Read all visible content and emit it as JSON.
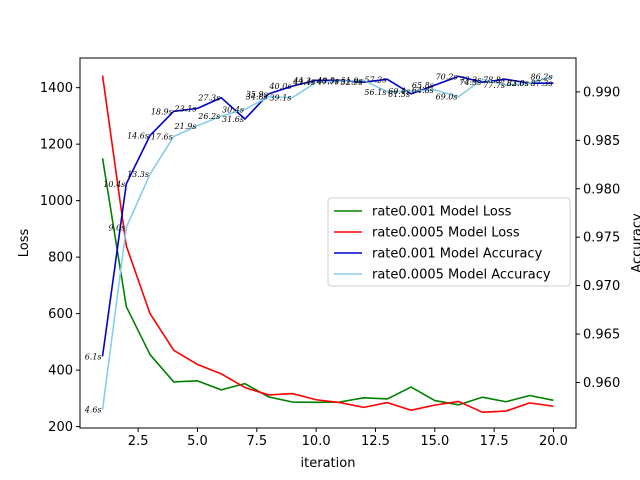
{
  "chart_data": {
    "type": "line",
    "xlabel": "iteration",
    "ylabel_left": "Loss",
    "ylabel_right": "Accuracy",
    "xlim": [
      0.05,
      20.95
    ],
    "ylim_left": [
      195,
      1505
    ],
    "ylim_right": [
      0.9553,
      0.9935
    ],
    "x_ticks": [
      2.5,
      5.0,
      7.5,
      10.0,
      12.5,
      15.0,
      17.5,
      20.0
    ],
    "x_tick_labels": [
      "2.5",
      "5.0",
      "7.5",
      "10.0",
      "12.5",
      "15.0",
      "17.5",
      "20.0"
    ],
    "y_left_ticks": [
      200,
      400,
      600,
      800,
      1000,
      1200,
      1400
    ],
    "y_left_tick_labels": [
      "200",
      "400",
      "600",
      "800",
      "1000",
      "1200",
      "1400"
    ],
    "y_right_ticks": [
      0.96,
      0.965,
      0.97,
      0.975,
      0.98,
      0.985,
      0.99
    ],
    "y_right_tick_labels": [
      "0.960",
      "0.965",
      "0.970",
      "0.975",
      "0.980",
      "0.985",
      "0.990"
    ],
    "legend_placement": "center-right",
    "x": [
      1,
      2,
      3,
      4,
      5,
      6,
      7,
      8,
      9,
      10,
      11,
      12,
      13,
      14,
      15,
      16,
      17,
      18,
      19,
      20
    ],
    "series": [
      {
        "name": "rate0.001 Model Loss",
        "axis": "left",
        "color": "#008000",
        "values": [
          1150,
          625,
          455,
          358,
          362,
          330,
          352,
          305,
          287,
          286,
          287,
          302,
          298,
          340,
          292,
          277,
          304,
          288,
          310,
          293
        ]
      },
      {
        "name": "rate0.0005 Model Loss",
        "axis": "left",
        "color": "#ff0000",
        "values": [
          1443,
          840,
          600,
          470,
          420,
          387,
          338,
          312,
          317,
          295,
          285,
          268,
          285,
          258,
          276,
          289,
          251,
          255,
          284,
          272
        ]
      },
      {
        "name": "rate0.001 Model Accuracy",
        "axis": "right",
        "color": "#0000cd",
        "values": [
          0.9627,
          0.9805,
          0.9855,
          0.988,
          0.9883,
          0.9894,
          0.9872,
          0.9898,
          0.9906,
          0.9912,
          0.9912,
          0.991,
          0.9913,
          0.9898,
          0.9907,
          0.9916,
          0.991,
          0.9913,
          0.9909,
          0.9909
        ]
      },
      {
        "name": "rate0.0005 Model Accuracy",
        "axis": "right",
        "color": "#87ceeb",
        "values": [
          0.9572,
          0.976,
          0.9815,
          0.9854,
          0.9865,
          0.9875,
          0.9882,
          0.9895,
          0.9894,
          0.991,
          0.9911,
          0.9912,
          0.99,
          0.9901,
          0.9902,
          0.9895,
          0.9913,
          0.9907,
          0.9909,
          0.9916
        ]
      }
    ],
    "annotations": [
      {
        "text": "6.1s",
        "x": 1,
        "y": 0.9627,
        "series": "rate0.001 Model Accuracy"
      },
      {
        "text": "10.4s",
        "x": 2,
        "y": 0.9805,
        "series": "rate0.001 Model Accuracy"
      },
      {
        "text": "14.6s",
        "x": 3,
        "y": 0.9855,
        "series": "rate0.001 Model Accuracy"
      },
      {
        "text": "18.9s",
        "x": 4,
        "y": 0.988,
        "series": "rate0.001 Model Accuracy"
      },
      {
        "text": "23.1s",
        "x": 5,
        "y": 0.9883,
        "series": "rate0.001 Model Accuracy"
      },
      {
        "text": "27.3s",
        "x": 6,
        "y": 0.9894,
        "series": "rate0.001 Model Accuracy"
      },
      {
        "text": "31.6s",
        "x": 7,
        "y": 0.9872,
        "series": "rate0.001 Model Accuracy"
      },
      {
        "text": "35.9s",
        "x": 8,
        "y": 0.9898,
        "series": "rate0.001 Model Accuracy"
      },
      {
        "text": "40.0s",
        "x": 9,
        "y": 0.9906,
        "series": "rate0.001 Model Accuracy"
      },
      {
        "text": "44.3s",
        "x": 10,
        "y": 0.9912,
        "series": "rate0.001 Model Accuracy"
      },
      {
        "text": "48.5s",
        "x": 11,
        "y": 0.9912,
        "series": "rate0.001 Model Accuracy"
      },
      {
        "text": "52.9s",
        "x": 12,
        "y": 0.991,
        "series": "rate0.001 Model Accuracy"
      },
      {
        "text": "57.2s",
        "x": 13,
        "y": 0.9913,
        "series": "rate0.001 Model Accuracy"
      },
      {
        "text": "61.5s",
        "x": 14,
        "y": 0.9898,
        "series": "rate0.001 Model Accuracy"
      },
      {
        "text": "65.8s",
        "x": 15,
        "y": 0.9907,
        "series": "rate0.001 Model Accuracy"
      },
      {
        "text": "70.2s",
        "x": 16,
        "y": 0.9916,
        "series": "rate0.001 Model Accuracy"
      },
      {
        "text": "74.5s",
        "x": 17,
        "y": 0.991,
        "series": "rate0.001 Model Accuracy"
      },
      {
        "text": "78.8s",
        "x": 18,
        "y": 0.9913,
        "series": "rate0.001 Model Accuracy"
      },
      {
        "text": "83.0s",
        "x": 19,
        "y": 0.9909,
        "series": "rate0.001 Model Accuracy"
      },
      {
        "text": "87.3s",
        "x": 20,
        "y": 0.9909,
        "series": "rate0.001 Model Accuracy"
      },
      {
        "text": "4.6s",
        "x": 1,
        "y": 0.9572,
        "series": "rate0.0005 Model Accuracy"
      },
      {
        "text": "9.0s",
        "x": 2,
        "y": 0.976,
        "series": "rate0.0005 Model Accuracy"
      },
      {
        "text": "13.3s",
        "x": 3,
        "y": 0.9815,
        "series": "rate0.0005 Model Accuracy"
      },
      {
        "text": "17.6s",
        "x": 4,
        "y": 0.9854,
        "series": "rate0.0005 Model Accuracy"
      },
      {
        "text": "21.9s",
        "x": 5,
        "y": 0.9865,
        "series": "rate0.0005 Model Accuracy"
      },
      {
        "text": "26.2s",
        "x": 6,
        "y": 0.9875,
        "series": "rate0.0005 Model Accuracy"
      },
      {
        "text": "30.4s",
        "x": 7,
        "y": 0.9882,
        "series": "rate0.0005 Model Accuracy"
      },
      {
        "text": "34.8s",
        "x": 8,
        "y": 0.9895,
        "series": "rate0.0005 Model Accuracy"
      },
      {
        "text": "39.1s",
        "x": 9,
        "y": 0.9894,
        "series": "rate0.0005 Model Accuracy"
      },
      {
        "text": "43.4s",
        "x": 10,
        "y": 0.991,
        "series": "rate0.0005 Model Accuracy"
      },
      {
        "text": "47.7s",
        "x": 11,
        "y": 0.9911,
        "series": "rate0.0005 Model Accuracy"
      },
      {
        "text": "51.9s",
        "x": 12,
        "y": 0.9912,
        "series": "rate0.0005 Model Accuracy"
      },
      {
        "text": "56.1s",
        "x": 13,
        "y": 0.99,
        "series": "rate0.0005 Model Accuracy"
      },
      {
        "text": "60.4s",
        "x": 14,
        "y": 0.9901,
        "series": "rate0.0005 Model Accuracy"
      },
      {
        "text": "64.8s",
        "x": 15,
        "y": 0.9902,
        "series": "rate0.0005 Model Accuracy"
      },
      {
        "text": "69.0s",
        "x": 16,
        "y": 0.9895,
        "series": "rate0.0005 Model Accuracy"
      },
      {
        "text": "73.3s",
        "x": 17,
        "y": 0.9913,
        "series": "rate0.0005 Model Accuracy"
      },
      {
        "text": "77.7s",
        "x": 18,
        "y": 0.9907,
        "series": "rate0.0005 Model Accuracy"
      },
      {
        "text": "82.0s",
        "x": 19,
        "y": 0.9909,
        "series": "rate0.0005 Model Accuracy"
      },
      {
        "text": "86.2s",
        "x": 20,
        "y": 0.9916,
        "series": "rate0.0005 Model Accuracy"
      }
    ]
  }
}
